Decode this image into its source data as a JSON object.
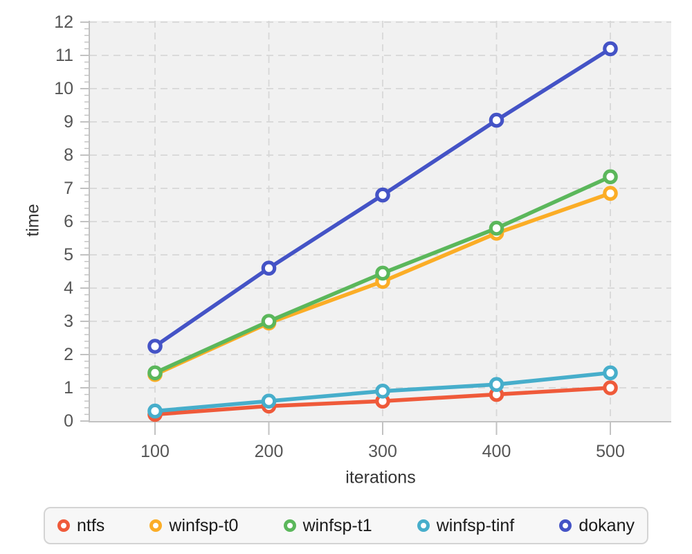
{
  "chart_data": {
    "type": "line",
    "title": "",
    "xlabel": "iterations",
    "ylabel": "time",
    "x": [
      100,
      200,
      300,
      400,
      500
    ],
    "series": [
      {
        "name": "ntfs",
        "color": "#ef5a3a",
        "values": [
          0.2,
          0.45,
          0.6,
          0.8,
          1.0
        ]
      },
      {
        "name": "winfsp-t0",
        "color": "#fbad26",
        "values": [
          1.4,
          2.95,
          4.2,
          5.65,
          6.85
        ]
      },
      {
        "name": "winfsp-t1",
        "color": "#5bb75b",
        "values": [
          1.45,
          3.0,
          4.45,
          5.8,
          7.35
        ]
      },
      {
        "name": "winfsp-tinf",
        "color": "#47aecb",
        "values": [
          0.3,
          0.6,
          0.9,
          1.1,
          1.45
        ]
      },
      {
        "name": "dokany",
        "color": "#4453c6",
        "values": [
          2.25,
          4.6,
          6.8,
          9.05,
          11.2
        ]
      }
    ],
    "ylim": [
      0,
      12
    ],
    "y_major_ticks": [
      0,
      1,
      2,
      3,
      4,
      5,
      6,
      7,
      8,
      9,
      10,
      11,
      12
    ],
    "y_minor_step": 0.2,
    "x_major_ticks": [
      100,
      200,
      300,
      400,
      500
    ],
    "grid": "dashed",
    "legend_position": "bottom",
    "colors": {
      "plot_background": "#f1f1f1",
      "grid": "#d7d7d7",
      "axis": "#c2c2c2",
      "tick_label": "#555555",
      "axis_title": "#333333",
      "legend_border": "#d4d4d4",
      "legend_background": "#f7f7f7",
      "legend_text": "#1a1a1a"
    }
  }
}
